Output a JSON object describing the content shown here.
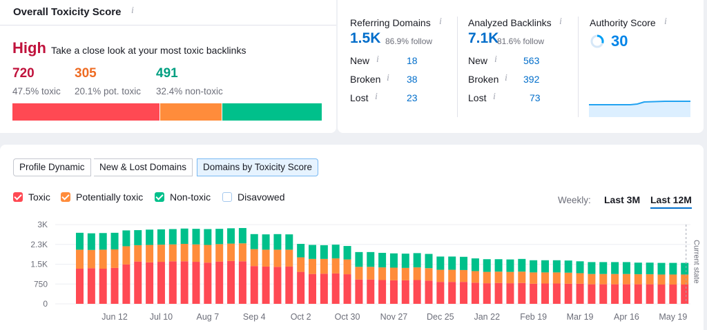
{
  "toxicity": {
    "title": "Overall Toxicity Score",
    "level": "High",
    "description": "Take a close look at your most toxic backlinks",
    "stats": [
      {
        "value": "720",
        "label": "47.5% toxic",
        "color": "#c0123c"
      },
      {
        "value": "305",
        "label": "20.1% pot. toxic",
        "color": "#ee6c24"
      },
      {
        "value": "491",
        "label": "32.4% non-toxic",
        "color": "#009f81"
      }
    ],
    "bar_fractions": [
      0.475,
      0.201,
      0.324
    ],
    "bar_colors": [
      "#ff4953",
      "#ff8c3b",
      "#00c08b"
    ]
  },
  "referring_domains": {
    "title": "Referring Domains",
    "value": "1.5K",
    "follow": "86.9% follow",
    "rows": [
      {
        "label": "New",
        "value": "18"
      },
      {
        "label": "Broken",
        "value": "38"
      },
      {
        "label": "Lost",
        "value": "23"
      }
    ]
  },
  "analyzed_backlinks": {
    "title": "Analyzed Backlinks",
    "value": "7.1K",
    "follow": "81.6% follow",
    "rows": [
      {
        "label": "New",
        "value": "563"
      },
      {
        "label": "Broken",
        "value": "392"
      },
      {
        "label": "Lost",
        "value": "73"
      }
    ]
  },
  "authority": {
    "title": "Authority Score",
    "value": "30"
  },
  "tabs": [
    "Profile Dynamic",
    "New & Lost Domains",
    "Domains by Toxicity Score"
  ],
  "active_tab": 2,
  "legend": [
    {
      "label": "Toxic",
      "color": "#ff4953",
      "checked": true
    },
    {
      "label": "Potentially toxic",
      "color": "#ff8c3b",
      "checked": true
    },
    {
      "label": "Non-toxic",
      "color": "#00c08b",
      "checked": true
    },
    {
      "label": "Disavowed",
      "color": "#ffffff",
      "checked": false
    }
  ],
  "period": {
    "label": "Weekly:",
    "options": [
      "Last 3M",
      "Last 12M"
    ],
    "active": 1
  },
  "current_state_label": "Current state",
  "chart_data": {
    "type": "bar",
    "stacked": true,
    "ylim": [
      0,
      3000
    ],
    "yticks": [
      "0",
      "750",
      "1.5K",
      "2.3K",
      "3K"
    ],
    "ytick_values": [
      0,
      750,
      1500,
      2250,
      3000
    ],
    "xtick_labels": [
      "Jun 12",
      "Jul 10",
      "Aug 7",
      "Sep 4",
      "Oct 2",
      "Oct 30",
      "Nov 27",
      "Dec 25",
      "Jan 22",
      "Feb 19",
      "Mar 19",
      "Apr 16",
      "May 19"
    ],
    "xtick_bar_index": [
      3,
      7,
      11,
      15,
      19,
      23,
      27,
      31,
      35,
      39,
      43,
      47,
      51
    ],
    "series": [
      {
        "name": "Toxic",
        "color": "#ff4953",
        "values": [
          1330,
          1350,
          1330,
          1360,
          1490,
          1600,
          1570,
          1590,
          1610,
          1610,
          1590,
          1560,
          1600,
          1620,
          1610,
          1430,
          1410,
          1400,
          1410,
          1210,
          1130,
          1140,
          1150,
          1120,
          920,
          920,
          900,
          890,
          890,
          900,
          880,
          830,
          830,
          830,
          800,
          780,
          790,
          780,
          790,
          760,
          770,
          770,
          760,
          760,
          740,
          740,
          740,
          740,
          740,
          740,
          730,
          730,
          730
        ]
      },
      {
        "name": "Potentially toxic",
        "color": "#ff8c3b",
        "values": [
          720,
          690,
          720,
          700,
          690,
          620,
          660,
          650,
          640,
          660,
          660,
          670,
          660,
          660,
          680,
          640,
          640,
          650,
          640,
          550,
          570,
          560,
          570,
          560,
          480,
          480,
          480,
          480,
          470,
          480,
          470,
          460,
          460,
          450,
          440,
          430,
          430,
          430,
          430,
          430,
          420,
          420,
          420,
          400,
          390,
          390,
          390,
          390,
          380,
          380,
          380,
          380,
          380
        ]
      },
      {
        "name": "Non-toxic",
        "color": "#00c08b",
        "values": [
          640,
          630,
          630,
          630,
          600,
          570,
          580,
          580,
          580,
          580,
          590,
          600,
          580,
          580,
          580,
          570,
          580,
          590,
          580,
          510,
          530,
          520,
          520,
          510,
          560,
          560,
          550,
          540,
          540,
          540,
          540,
          500,
          500,
          500,
          480,
          480,
          470,
          470,
          480,
          460,
          460,
          460,
          460,
          450,
          450,
          450,
          450,
          450,
          440,
          440,
          440,
          440,
          440
        ]
      }
    ]
  }
}
